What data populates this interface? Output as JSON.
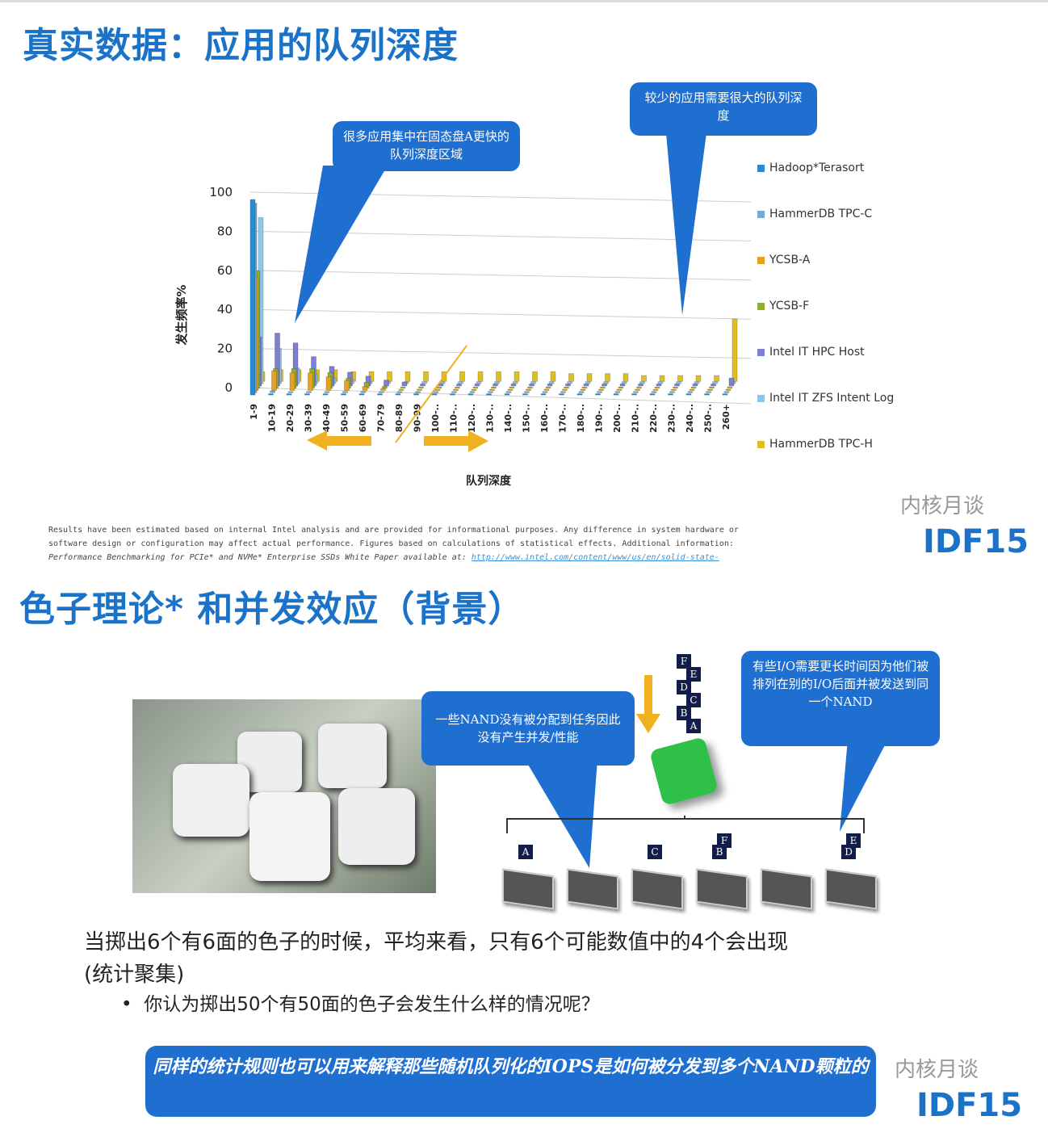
{
  "slide1": {
    "title": "真实数据：应用的队列深度",
    "bubble_left": "很多应用集中在固态盘A更快的队列深度区域",
    "bubble_right": "较少的应用需要很大的队列深度",
    "disclaimer": [
      "Results have been estimated based on internal Intel analysis and are provided for informational purposes. Any difference in system hardware or",
      "software design or configuration may affect actual performance.  Figures based on calculations of statistical effects. Additional information:",
      "Performance Benchmarking for PCIe* and NVMe* Enterprise SSDs White Paper available at: "
    ],
    "link": "http://www.intel.com/content/www/us/en/solid-state-",
    "watermark": "内核月谈",
    "logo": "IDF15"
  },
  "chart_data": {
    "type": "bar",
    "title": "",
    "xlabel": "队列深度",
    "ylabel": "发生频率%",
    "ylim": [
      0,
      100
    ],
    "yticks": [
      0,
      20,
      40,
      60,
      80,
      100
    ],
    "grid": true,
    "legend_placement": "right",
    "categories": [
      "1-9",
      "10-19",
      "20-29",
      "30-39",
      "40-49",
      "50-59",
      "60-69",
      "70-79",
      "80-89",
      "90-99",
      "100-..",
      "110-..",
      "120-..",
      "130-..",
      "140-..",
      "150-..",
      "160-..",
      "170-..",
      "180-..",
      "190-..",
      "200-..",
      "210-..",
      "220-..",
      "230-..",
      "240-..",
      "250-..",
      "260+"
    ],
    "series": [
      {
        "name": "Hadoop*Terasort",
        "color": "#2a8bd0",
        "values": [
          100,
          0,
          0,
          0,
          0,
          0,
          0,
          0,
          0,
          0,
          0,
          0,
          0,
          0,
          0,
          0,
          0,
          0,
          0,
          0,
          0,
          0,
          0,
          0,
          0,
          0,
          0
        ]
      },
      {
        "name": "HammerDB TPC-C",
        "color": "#6aaee0",
        "values": [
          97,
          1,
          0,
          0,
          0,
          0,
          0,
          0,
          0,
          0,
          0,
          0,
          0,
          0,
          0,
          0,
          0,
          0,
          0,
          0,
          0,
          0,
          0,
          0,
          0,
          0,
          0
        ]
      },
      {
        "name": "YCSB-A",
        "color": "#e8a020",
        "values": [
          58,
          10,
          9,
          9,
          7,
          5,
          2,
          1,
          0,
          0,
          0,
          0,
          0,
          0,
          0,
          0,
          0,
          0,
          0,
          0,
          0,
          0,
          0,
          0,
          0,
          0,
          0
        ]
      },
      {
        "name": "YCSB-F",
        "color": "#8db030",
        "values": [
          60,
          10,
          10,
          10,
          8,
          5,
          3,
          1,
          0,
          0,
          0,
          0,
          0,
          0,
          0,
          0,
          0,
          0,
          0,
          0,
          0,
          0,
          0,
          0,
          0,
          0,
          0
        ]
      },
      {
        "name": "Intel IT HPC Host",
        "color": "#7d80d0",
        "values": [
          25,
          27,
          22,
          15,
          10,
          7,
          5,
          3,
          2,
          1,
          1,
          1,
          1,
          1,
          1,
          1,
          1,
          1,
          1,
          1,
          1,
          1,
          1,
          1,
          1,
          1,
          4
        ]
      },
      {
        "name": "Intel IT ZFS Intent Log",
        "color": "#8cc8ee",
        "values": [
          85,
          18,
          8,
          5,
          3,
          2,
          1,
          1,
          1,
          1,
          1,
          1,
          1,
          1,
          1,
          1,
          1,
          1,
          1,
          1,
          1,
          1,
          1,
          1,
          1,
          1,
          1
        ]
      },
      {
        "name": "HammerDB TPC-H",
        "color": "#e0c020",
        "values": [
          5,
          6,
          6,
          6,
          6,
          5,
          5,
          5,
          5,
          5,
          5,
          5,
          5,
          5,
          5,
          5,
          5,
          4,
          4,
          4,
          4,
          3,
          3,
          3,
          3,
          3,
          32
        ]
      }
    ]
  },
  "slide2": {
    "title": "色子理论* 和并发效应（背景）",
    "bubble_left": "一些NAND没有被分配到任务因此没有产生并发/性能",
    "bubble_right": "有些I/O需要更长时间因为他们被排列在别的I/O后面并被发送到同一个NAND",
    "queue_letters": [
      "F",
      "E",
      "D",
      "C",
      "B",
      "A"
    ],
    "nand_tags": [
      [
        "A"
      ],
      [],
      [
        "C"
      ],
      [
        "F",
        "B"
      ],
      [],
      [
        "E",
        "D"
      ]
    ],
    "text1": "当掷出6个有6面的色子的时候，平均来看，只有6个可能数值中的4个会出现",
    "text2": "(统计聚集)",
    "bullet": "你认为掷出50个有50面的色子会发生什么样的情况呢？",
    "banner": "同样的统计规则也可以用来解释那些随机队列化的IOPS是如何被分发到多个NAND颗粒的",
    "watermark": "内核月谈",
    "logo": "IDF15"
  }
}
